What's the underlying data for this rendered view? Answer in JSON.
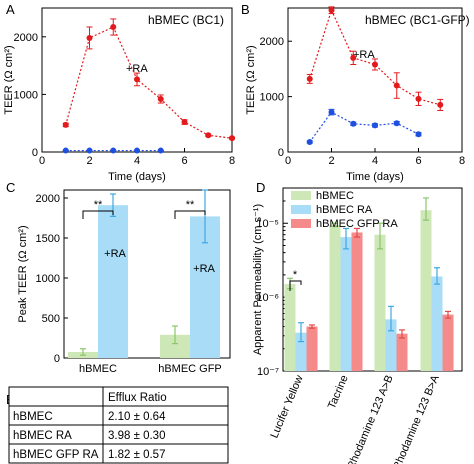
{
  "panels": {
    "a": {
      "label": "A"
    },
    "b": {
      "label": "B"
    },
    "c": {
      "label": "C"
    },
    "d": {
      "label": "D"
    },
    "e": {
      "label": "E"
    }
  },
  "chart_data": [
    {
      "panel": "A",
      "type": "line",
      "title": "hBMEC (BC1)",
      "xlabel": "Time (days)",
      "ylabel": "TEER (Ω cm²)",
      "xlim": [
        0,
        8
      ],
      "ylim": [
        0,
        2500
      ],
      "xticks": [
        0,
        2,
        4,
        6,
        8
      ],
      "yticks": [
        0,
        1000,
        2000
      ],
      "annotation": "+RA",
      "grid": false,
      "series": [
        {
          "color": "#e31a1c",
          "x": [
            1,
            2,
            3,
            4,
            5,
            6,
            7,
            8
          ],
          "y": [
            470,
            1980,
            2170,
            1260,
            920,
            520,
            290,
            240
          ],
          "err": [
            30,
            190,
            140,
            110,
            70,
            40,
            20,
            15
          ]
        },
        {
          "color": "#1f4fe0",
          "x": [
            1,
            2,
            3,
            4,
            5
          ],
          "y": [
            25,
            25,
            25,
            25,
            25
          ],
          "err": [
            5,
            5,
            5,
            5,
            5
          ]
        }
      ]
    },
    {
      "panel": "B",
      "type": "line",
      "title": "hBMEC (BC1-GFP)",
      "xlabel": "Time (days)",
      "ylabel": "TEER (Ω cm²)",
      "xlim": [
        0,
        8
      ],
      "ylim": [
        0,
        2600
      ],
      "xticks": [
        0,
        2,
        4,
        6,
        8
      ],
      "yticks": [
        0,
        1000,
        2000
      ],
      "annotation": "+RA",
      "grid": false,
      "series": [
        {
          "color": "#e31a1c",
          "x": [
            1,
            2,
            3,
            4,
            5,
            6,
            7
          ],
          "y": [
            1320,
            2560,
            1700,
            1580,
            1200,
            960,
            850
          ],
          "err": [
            80,
            60,
            120,
            100,
            230,
            120,
            100
          ]
        },
        {
          "color": "#1f4fe0",
          "x": [
            1,
            2,
            3,
            4,
            5,
            6
          ],
          "y": [
            180,
            720,
            510,
            480,
            520,
            320
          ],
          "err": [
            20,
            50,
            30,
            30,
            30,
            30
          ]
        }
      ]
    },
    {
      "panel": "C",
      "type": "bar",
      "ylabel": "Peak TEER (Ω cm²)",
      "ylim": [
        0,
        2100
      ],
      "yticks": [
        0,
        500,
        1000,
        1500,
        2000
      ],
      "categories": [
        "hBMEC",
        "hBMEC GFP"
      ],
      "bar_annotation": "+RA",
      "significance": "**",
      "series": [
        {
          "color": "#cde8b6",
          "values": [
            75,
            290
          ],
          "err": [
            40,
            110
          ]
        },
        {
          "color": "#a8dcf7",
          "values": [
            1910,
            1770
          ],
          "err": [
            140,
            330
          ]
        }
      ]
    },
    {
      "panel": "D",
      "type": "bar",
      "ylabel": "Apparent Permeability (cm s⁻¹)",
      "yscale": "log",
      "ylim": [
        1e-07,
        3e-05
      ],
      "yticks": [
        "10⁻⁷",
        "10⁻⁶",
        "10⁻⁵"
      ],
      "categories": [
        "Lucifer Yellow",
        "Tacrine",
        "Rhodamine 123 A>B",
        "Rhodamine 123 B>A"
      ],
      "significance": "*",
      "legend_position": "top-left",
      "series": [
        {
          "name": "hBMEC",
          "color": "#cde8b6",
          "values": [
            1.5e-06,
            9.5e-06,
            7e-06,
            1.5e-05
          ],
          "err_low": [
            1.3e-06,
            9e-06,
            4.5e-06,
            1.1e-05
          ],
          "err_high": [
            1.8e-06,
            1e-05,
            1e-05,
            2.2e-05
          ]
        },
        {
          "name": "hBMEC RA",
          "color": "#a8dcf7",
          "values": [
            3.3e-07,
            6.5e-06,
            5e-07,
            1.9e-06
          ],
          "err_low": [
            2.5e-07,
            4.5e-06,
            3.5e-07,
            1.5e-06
          ],
          "err_high": [
            4.5e-07,
            8.5e-06,
            7.5e-07,
            2.5e-06
          ]
        },
        {
          "name": "hBMEC GFP RA",
          "color": "#f48a8a",
          "values": [
            4e-07,
            7.5e-06,
            3.2e-07,
            5.8e-07
          ],
          "err_low": [
            3.8e-07,
            6.5e-06,
            2.8e-07,
            5.2e-07
          ],
          "err_high": [
            4.2e-07,
            8.5e-06,
            3.6e-07,
            6.4e-07
          ]
        }
      ]
    },
    {
      "panel": "E",
      "type": "table",
      "columns": [
        "",
        "Efflux Ratio"
      ],
      "rows": [
        [
          "hBMEC",
          "2.10 ± 0.64"
        ],
        [
          "hBMEC RA",
          "3.98 ± 0.30"
        ],
        [
          "hBMEC GFP RA",
          "1.82 ± 0.57"
        ]
      ]
    }
  ]
}
